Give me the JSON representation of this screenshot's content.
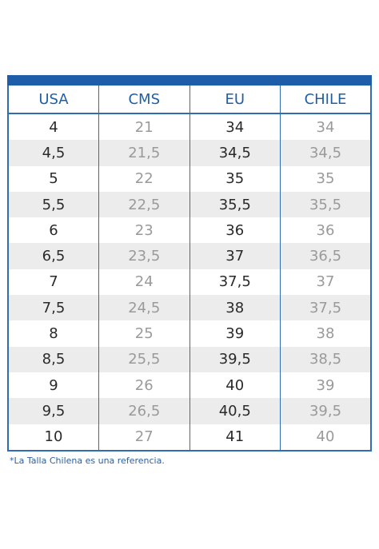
{
  "table": {
    "headers": [
      "USA",
      "CMS",
      "EU",
      "CHILE"
    ],
    "rows": [
      [
        "4",
        "21",
        "34",
        "34"
      ],
      [
        "4,5",
        "21,5",
        "34,5",
        "34,5"
      ],
      [
        "5",
        "22",
        "35",
        "35"
      ],
      [
        "5,5",
        "22,5",
        "35,5",
        "35,5"
      ],
      [
        "6",
        "23",
        "36",
        "36"
      ],
      [
        "6,5",
        "23,5",
        "37",
        "36,5"
      ],
      [
        "7",
        "24",
        "37,5",
        "37"
      ],
      [
        "7,5",
        "24,5",
        "38",
        "37,5"
      ],
      [
        "8",
        "25",
        "39",
        "38"
      ],
      [
        "8,5",
        "25,5",
        "39,5",
        "38,5"
      ],
      [
        "9",
        "26",
        "40",
        "39"
      ],
      [
        "9,5",
        "26,5",
        "40,5",
        "39,5"
      ],
      [
        "10",
        "27",
        "41",
        "40"
      ]
    ]
  },
  "footnote": "*La Talla Chilena es una referencia.",
  "colors": {
    "header_bar": "#1e5ea8",
    "header_text": "#1f5fa8",
    "border": "#2f6db2",
    "zebra": "#ececec",
    "dark_value": "#2a2a2a",
    "light_value": "#9a9a9a"
  }
}
